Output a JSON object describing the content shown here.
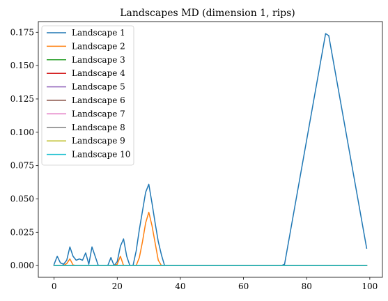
{
  "chart_data": {
    "type": "line",
    "title": "Landscapes MD (dimension 1, rips)",
    "xlabel": "",
    "ylabel": "",
    "xlim": [
      -5,
      104
    ],
    "ylim": [
      -0.0088,
      0.183
    ],
    "xticks": [
      0,
      20,
      40,
      60,
      80,
      100
    ],
    "xtick_labels": [
      "0",
      "20",
      "40",
      "60",
      "80",
      "100"
    ],
    "yticks": [
      0.0,
      0.025,
      0.05,
      0.075,
      0.1,
      0.125,
      0.15,
      0.175
    ],
    "ytick_labels": [
      "0.000",
      "0.025",
      "0.050",
      "0.075",
      "0.100",
      "0.125",
      "0.150",
      "0.175"
    ],
    "grid": false,
    "legend_position": "top-left",
    "series": [
      {
        "name": "Landscape 1",
        "color": "#1f77b4",
        "points": [
          [
            0,
            0.001
          ],
          [
            1,
            0.007
          ],
          [
            2,
            0.002
          ],
          [
            3,
            0.001
          ],
          [
            4,
            0.004
          ],
          [
            5,
            0.014
          ],
          [
            6,
            0.007
          ],
          [
            7,
            0.004
          ],
          [
            8,
            0.005
          ],
          [
            9,
            0.004
          ],
          [
            10,
            0.0095
          ],
          [
            11,
            0.001
          ],
          [
            12,
            0.014
          ],
          [
            13,
            0.007
          ],
          [
            14,
            0.0
          ],
          [
            15,
            0.0
          ],
          [
            16,
            0.0
          ],
          [
            17,
            0.0
          ],
          [
            18,
            0.006
          ],
          [
            19,
            0.0
          ],
          [
            20,
            0.003
          ],
          [
            21,
            0.0145
          ],
          [
            22,
            0.02
          ],
          [
            23,
            0.007
          ],
          [
            24,
            0.0
          ],
          [
            25,
            0.0
          ],
          [
            26,
            0.011
          ],
          [
            27,
            0.027
          ],
          [
            28,
            0.041
          ],
          [
            29,
            0.055
          ],
          [
            30,
            0.061
          ],
          [
            31,
            0.047
          ],
          [
            32,
            0.032
          ],
          [
            33,
            0.018
          ],
          [
            34,
            0.008
          ],
          [
            35,
            0.0
          ],
          [
            72,
            0.0
          ],
          [
            73,
            0.001
          ],
          [
            86,
            0.174
          ],
          [
            87,
            0.1725
          ],
          [
            99,
            0.013
          ]
        ]
      },
      {
        "name": "Landscape 2",
        "color": "#ff7f0e",
        "points": [
          [
            0,
            0.0
          ],
          [
            3,
            0.0
          ],
          [
            4,
            0.0015
          ],
          [
            5,
            0.005
          ],
          [
            6,
            0.0005
          ],
          [
            7,
            0.0
          ],
          [
            19,
            0.0
          ],
          [
            20,
            0.001
          ],
          [
            21,
            0.007
          ],
          [
            22,
            0.0
          ],
          [
            26,
            0.0
          ],
          [
            27,
            0.006
          ],
          [
            28,
            0.018
          ],
          [
            29,
            0.032
          ],
          [
            30,
            0.04
          ],
          [
            31,
            0.03
          ],
          [
            32,
            0.017
          ],
          [
            33,
            0.004
          ],
          [
            34,
            0.0
          ],
          [
            99,
            0.0
          ]
        ]
      },
      {
        "name": "Landscape 3",
        "color": "#2ca02c",
        "points": [
          [
            0,
            0.0
          ],
          [
            99,
            0.0
          ]
        ]
      },
      {
        "name": "Landscape 4",
        "color": "#d62728",
        "points": [
          [
            0,
            0.0
          ],
          [
            99,
            0.0
          ]
        ]
      },
      {
        "name": "Landscape 5",
        "color": "#9467bd",
        "points": [
          [
            0,
            0.0
          ],
          [
            99,
            0.0
          ]
        ]
      },
      {
        "name": "Landscape 6",
        "color": "#8c564b",
        "points": [
          [
            0,
            0.0
          ],
          [
            99,
            0.0
          ]
        ]
      },
      {
        "name": "Landscape 7",
        "color": "#e377c2",
        "points": [
          [
            0,
            0.0
          ],
          [
            99,
            0.0
          ]
        ]
      },
      {
        "name": "Landscape 8",
        "color": "#7f7f7f",
        "points": [
          [
            0,
            0.0
          ],
          [
            99,
            0.0
          ]
        ]
      },
      {
        "name": "Landscape 9",
        "color": "#bcbd22",
        "points": [
          [
            0,
            0.0
          ],
          [
            99,
            0.0
          ]
        ]
      },
      {
        "name": "Landscape 10",
        "color": "#17becf",
        "points": [
          [
            0,
            0.0
          ],
          [
            99,
            0.0
          ]
        ]
      }
    ]
  }
}
